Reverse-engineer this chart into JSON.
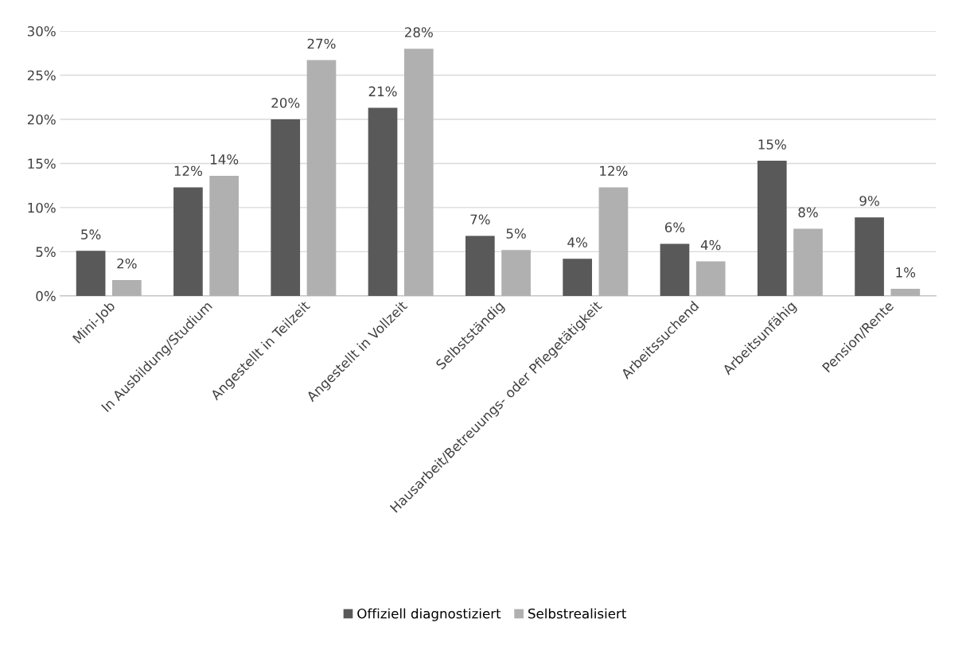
{
  "chart_data": {
    "type": "bar",
    "categories": [
      "Mini-Job",
      "In Ausbildung/Studium",
      "Angestellt in Teilzeit",
      "Angestellt in Vollzeit",
      "Selbstständig",
      "Hausarbeit/Betreuungs- oder Pflegetätigkeit",
      "Arbeitssuchend",
      "Arbeitsunfähig",
      "Pension/Rente"
    ],
    "series": [
      {
        "name": "Offiziell diagnostiziert",
        "color": "#595959",
        "values": [
          5.1,
          12.3,
          20.0,
          21.3,
          6.8,
          4.2,
          5.9,
          15.3,
          8.9
        ],
        "value_labels": [
          "5%",
          "12%",
          "20%",
          "21%",
          "7%",
          "4%",
          "6%",
          "15%",
          "9%"
        ]
      },
      {
        "name": "Selbstrealisiert",
        "color": "#b0b0b0",
        "values": [
          1.8,
          13.6,
          26.7,
          28.0,
          5.2,
          12.3,
          3.9,
          7.6,
          0.8
        ],
        "value_labels": [
          "2%",
          "14%",
          "27%",
          "28%",
          "5%",
          "12%",
          "4%",
          "8%",
          "1%"
        ]
      }
    ],
    "ylim": [
      0,
      30
    ],
    "yticks": [
      {
        "value": 0,
        "label": "0%"
      },
      {
        "value": 5,
        "label": "5%"
      },
      {
        "value": 10,
        "label": "10%"
      },
      {
        "value": 15,
        "label": "15%"
      },
      {
        "value": 20,
        "label": "20%"
      },
      {
        "value": 25,
        "label": "25%"
      },
      {
        "value": 30,
        "label": "30%"
      }
    ],
    "grid": "y",
    "legend": "bottom"
  }
}
